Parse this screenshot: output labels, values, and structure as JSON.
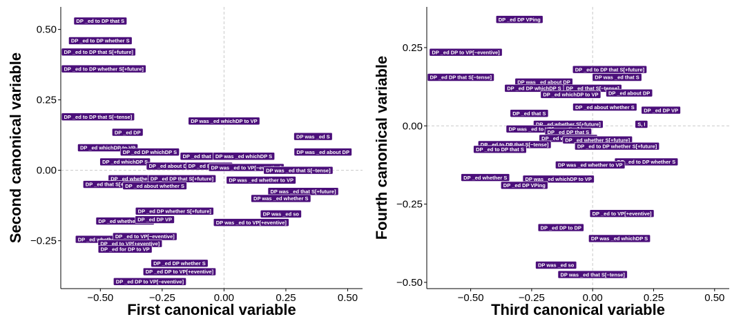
{
  "chart_data": [
    {
      "type": "scatter",
      "title": "",
      "xlabel": "First canonical variable",
      "ylabel": "Second canonical variable",
      "xlim": [
        -0.66,
        0.56
      ],
      "ylim": [
        -0.42,
        0.58
      ],
      "xticks": [
        -0.5,
        -0.25,
        0.0,
        0.25,
        0.5
      ],
      "xtick_labels": [
        "−0.50",
        "−0.25",
        "0.00",
        "0.25",
        "0.50"
      ],
      "yticks": [
        -0.25,
        0.0,
        0.25,
        0.5
      ],
      "ytick_labels": [
        "−0.25",
        "0.00",
        "0.25",
        "0.50"
      ],
      "grid": "dashed zero lines",
      "label_color": "#4b0f7a",
      "points": [
        {
          "label": "DP _ed to DP that S",
          "x": -0.5,
          "y": 0.53
        },
        {
          "label": "DP _ed to DP whether S",
          "x": -0.5,
          "y": 0.46
        },
        {
          "label": "DP _ed to DP that S[+future]",
          "x": -0.52,
          "y": 0.42
        },
        {
          "label": "DP _ed to DP whether S[+future]",
          "x": -0.5,
          "y": 0.36
        },
        {
          "label": "DP _ed to DP that S[−tense]",
          "x": -0.52,
          "y": 0.19
        },
        {
          "label": "DP was _ed whichDP to VP",
          "x": 0.0,
          "y": 0.175
        },
        {
          "label": "DP _ed DP",
          "x": -0.39,
          "y": 0.135
        },
        {
          "label": "DP was _ed S",
          "x": 0.36,
          "y": 0.12
        },
        {
          "label": "DP _ed whichDP to VP",
          "x": -0.47,
          "y": 0.08
        },
        {
          "label": "DP _ed DP whichDP S",
          "x": -0.3,
          "y": 0.065
        },
        {
          "label": "DP _ed that S",
          "x": -0.1,
          "y": 0.05
        },
        {
          "label": "DP was _ed whichDP S",
          "x": 0.08,
          "y": 0.05
        },
        {
          "label": "DP was _ed about DP",
          "x": 0.4,
          "y": 0.065
        },
        {
          "label": "DP _ed whichDP S",
          "x": -0.4,
          "y": 0.03
        },
        {
          "label": "DP _ed about DP",
          "x": -0.22,
          "y": 0.015
        },
        {
          "label": "DP _ed DP that S",
          "x": -0.06,
          "y": 0.015
        },
        {
          "label": "DP was _ed to VP[−eventive]",
          "x": 0.09,
          "y": 0.01
        },
        {
          "label": "DP was _ed that S[−tense]",
          "x": 0.3,
          "y": 0.0
        },
        {
          "label": "DP _ed whether S",
          "x": -0.37,
          "y": -0.03
        },
        {
          "label": "DP _ed DP that S[+future]",
          "x": -0.17,
          "y": -0.03
        },
        {
          "label": "DP _ed that S[+future]",
          "x": -0.45,
          "y": -0.05
        },
        {
          "label": "DP _ed about whether S",
          "x": -0.28,
          "y": -0.055
        },
        {
          "label": "DP was _ed whether to VP",
          "x": 0.15,
          "y": -0.035
        },
        {
          "label": "DP was _ed that S[+future]",
          "x": 0.32,
          "y": -0.075
        },
        {
          "label": "DP was _ed whether S",
          "x": 0.23,
          "y": -0.1
        },
        {
          "label": "DP _ed DP whether S[+future]",
          "x": -0.2,
          "y": -0.145
        },
        {
          "label": "DP was _ed so",
          "x": 0.23,
          "y": -0.155
        },
        {
          "label": "DP _ed whether to VP",
          "x": -0.4,
          "y": -0.18
        },
        {
          "label": "DP _ed DP VP",
          "x": -0.28,
          "y": -0.175
        },
        {
          "label": "DP was _ed to VP[+eventive]",
          "x": 0.11,
          "y": -0.185
        },
        {
          "label": "DP _ed whether S[+future]",
          "x": -0.46,
          "y": -0.245
        },
        {
          "label": "DP _ed to VP[−eventive]",
          "x": -0.32,
          "y": -0.235
        },
        {
          "label": "DP _ed to VP[+eventive]",
          "x": -0.38,
          "y": -0.26
        },
        {
          "label": "DP _ed for DP to VP",
          "x": -0.4,
          "y": -0.28
        },
        {
          "label": "DP _ed DP whether S",
          "x": -0.18,
          "y": -0.33
        },
        {
          "label": "DP _ed DP to VP[+eventive]",
          "x": -0.18,
          "y": -0.36
        },
        {
          "label": "DP _ed DP to VP[−eventive]",
          "x": -0.3,
          "y": -0.395
        }
      ]
    },
    {
      "type": "scatter",
      "title": "",
      "xlabel": "Third canonical variable",
      "ylabel": "Fourth canonical variable",
      "xlim": [
        -0.68,
        0.56
      ],
      "ylim": [
        -0.52,
        0.38
      ],
      "xticks": [
        -0.5,
        -0.25,
        0.0,
        0.25,
        0.5
      ],
      "xtick_labels": [
        "−0.50",
        "−0.25",
        "0.00",
        "0.25",
        "0.50"
      ],
      "yticks": [
        -0.5,
        -0.25,
        0.0,
        0.25
      ],
      "ytick_labels": [
        "−0.50",
        "−0.25",
        "0.00",
        "0.25"
      ],
      "grid": "dashed zero lines",
      "label_color": "#4b0f7a",
      "points": [
        {
          "label": "DP _ed DP VPing",
          "x": -0.3,
          "y": 0.34
        },
        {
          "label": "DP _ed DP to VP[−eventive]",
          "x": -0.52,
          "y": 0.235
        },
        {
          "label": "DP _ed to DP that S[+future]",
          "x": 0.07,
          "y": 0.18
        },
        {
          "label": "DP _ed DP that S[−tense]",
          "x": -0.6,
          "y": 0.155
        },
        {
          "label": "DP was _ed that S",
          "x": 0.1,
          "y": 0.155
        },
        {
          "label": "DP was _ed about DP",
          "x": -0.2,
          "y": 0.14
        },
        {
          "label": "DP _ed DP whichDP S",
          "x": -0.24,
          "y": 0.12
        },
        {
          "label": "DP _ed that S[−tense]",
          "x": 0.0,
          "y": 0.12
        },
        {
          "label": "DP _ed about DP",
          "x": 0.15,
          "y": 0.105
        },
        {
          "label": "DP _ed whichDP to VP",
          "x": -0.09,
          "y": 0.1
        },
        {
          "label": "DP _ed about whether S",
          "x": 0.05,
          "y": 0.06
        },
        {
          "label": "DP _ed DP VP",
          "x": 0.28,
          "y": 0.05
        },
        {
          "label": "DP _ed that S",
          "x": -0.26,
          "y": 0.04
        },
        {
          "label": "DP _ed whether S[+future]",
          "x": -0.1,
          "y": 0.005
        },
        {
          "label": "S, I",
          "x": 0.2,
          "y": 0.005
        },
        {
          "label": "DP was _ed to VP[−eventive]",
          "x": -0.2,
          "y": -0.01
        },
        {
          "label": "DP _ed DP that S",
          "x": -0.1,
          "y": -0.02
        },
        {
          "label": "DP _ed whether to VP",
          "x": -0.1,
          "y": -0.04
        },
        {
          "label": "DP _ed whether S[+future]",
          "x": 0.02,
          "y": -0.045
        },
        {
          "label": "DP _ed to DP that S[−tense]",
          "x": -0.32,
          "y": -0.06
        },
        {
          "label": "DP _ed to DP whether S[+future]",
          "x": 0.1,
          "y": -0.065
        },
        {
          "label": "DP _ed to DP that S",
          "x": -0.38,
          "y": -0.075
        },
        {
          "label": "DP _ed to DP whether S",
          "x": 0.22,
          "y": -0.115
        },
        {
          "label": "DP was _ed whether to VP",
          "x": -0.01,
          "y": -0.125
        },
        {
          "label": "DP _ed whether S",
          "x": -0.44,
          "y": -0.165
        },
        {
          "label": "DP was _ed whichDP to VP",
          "x": -0.14,
          "y": -0.17
        },
        {
          "label": "DP _ed DP VPing",
          "x": -0.28,
          "y": -0.19
        },
        {
          "label": "DP _ed to VP[+eventive]",
          "x": 0.12,
          "y": -0.28
        },
        {
          "label": "DP _ed DP to DP",
          "x": -0.13,
          "y": -0.325
        },
        {
          "label": "DP was _ed whichDP S",
          "x": 0.11,
          "y": -0.36
        },
        {
          "label": "DP was _ed so",
          "x": -0.15,
          "y": -0.445
        },
        {
          "label": "DP was _ed that S[−tense]",
          "x": 0.0,
          "y": -0.475
        }
      ]
    }
  ]
}
